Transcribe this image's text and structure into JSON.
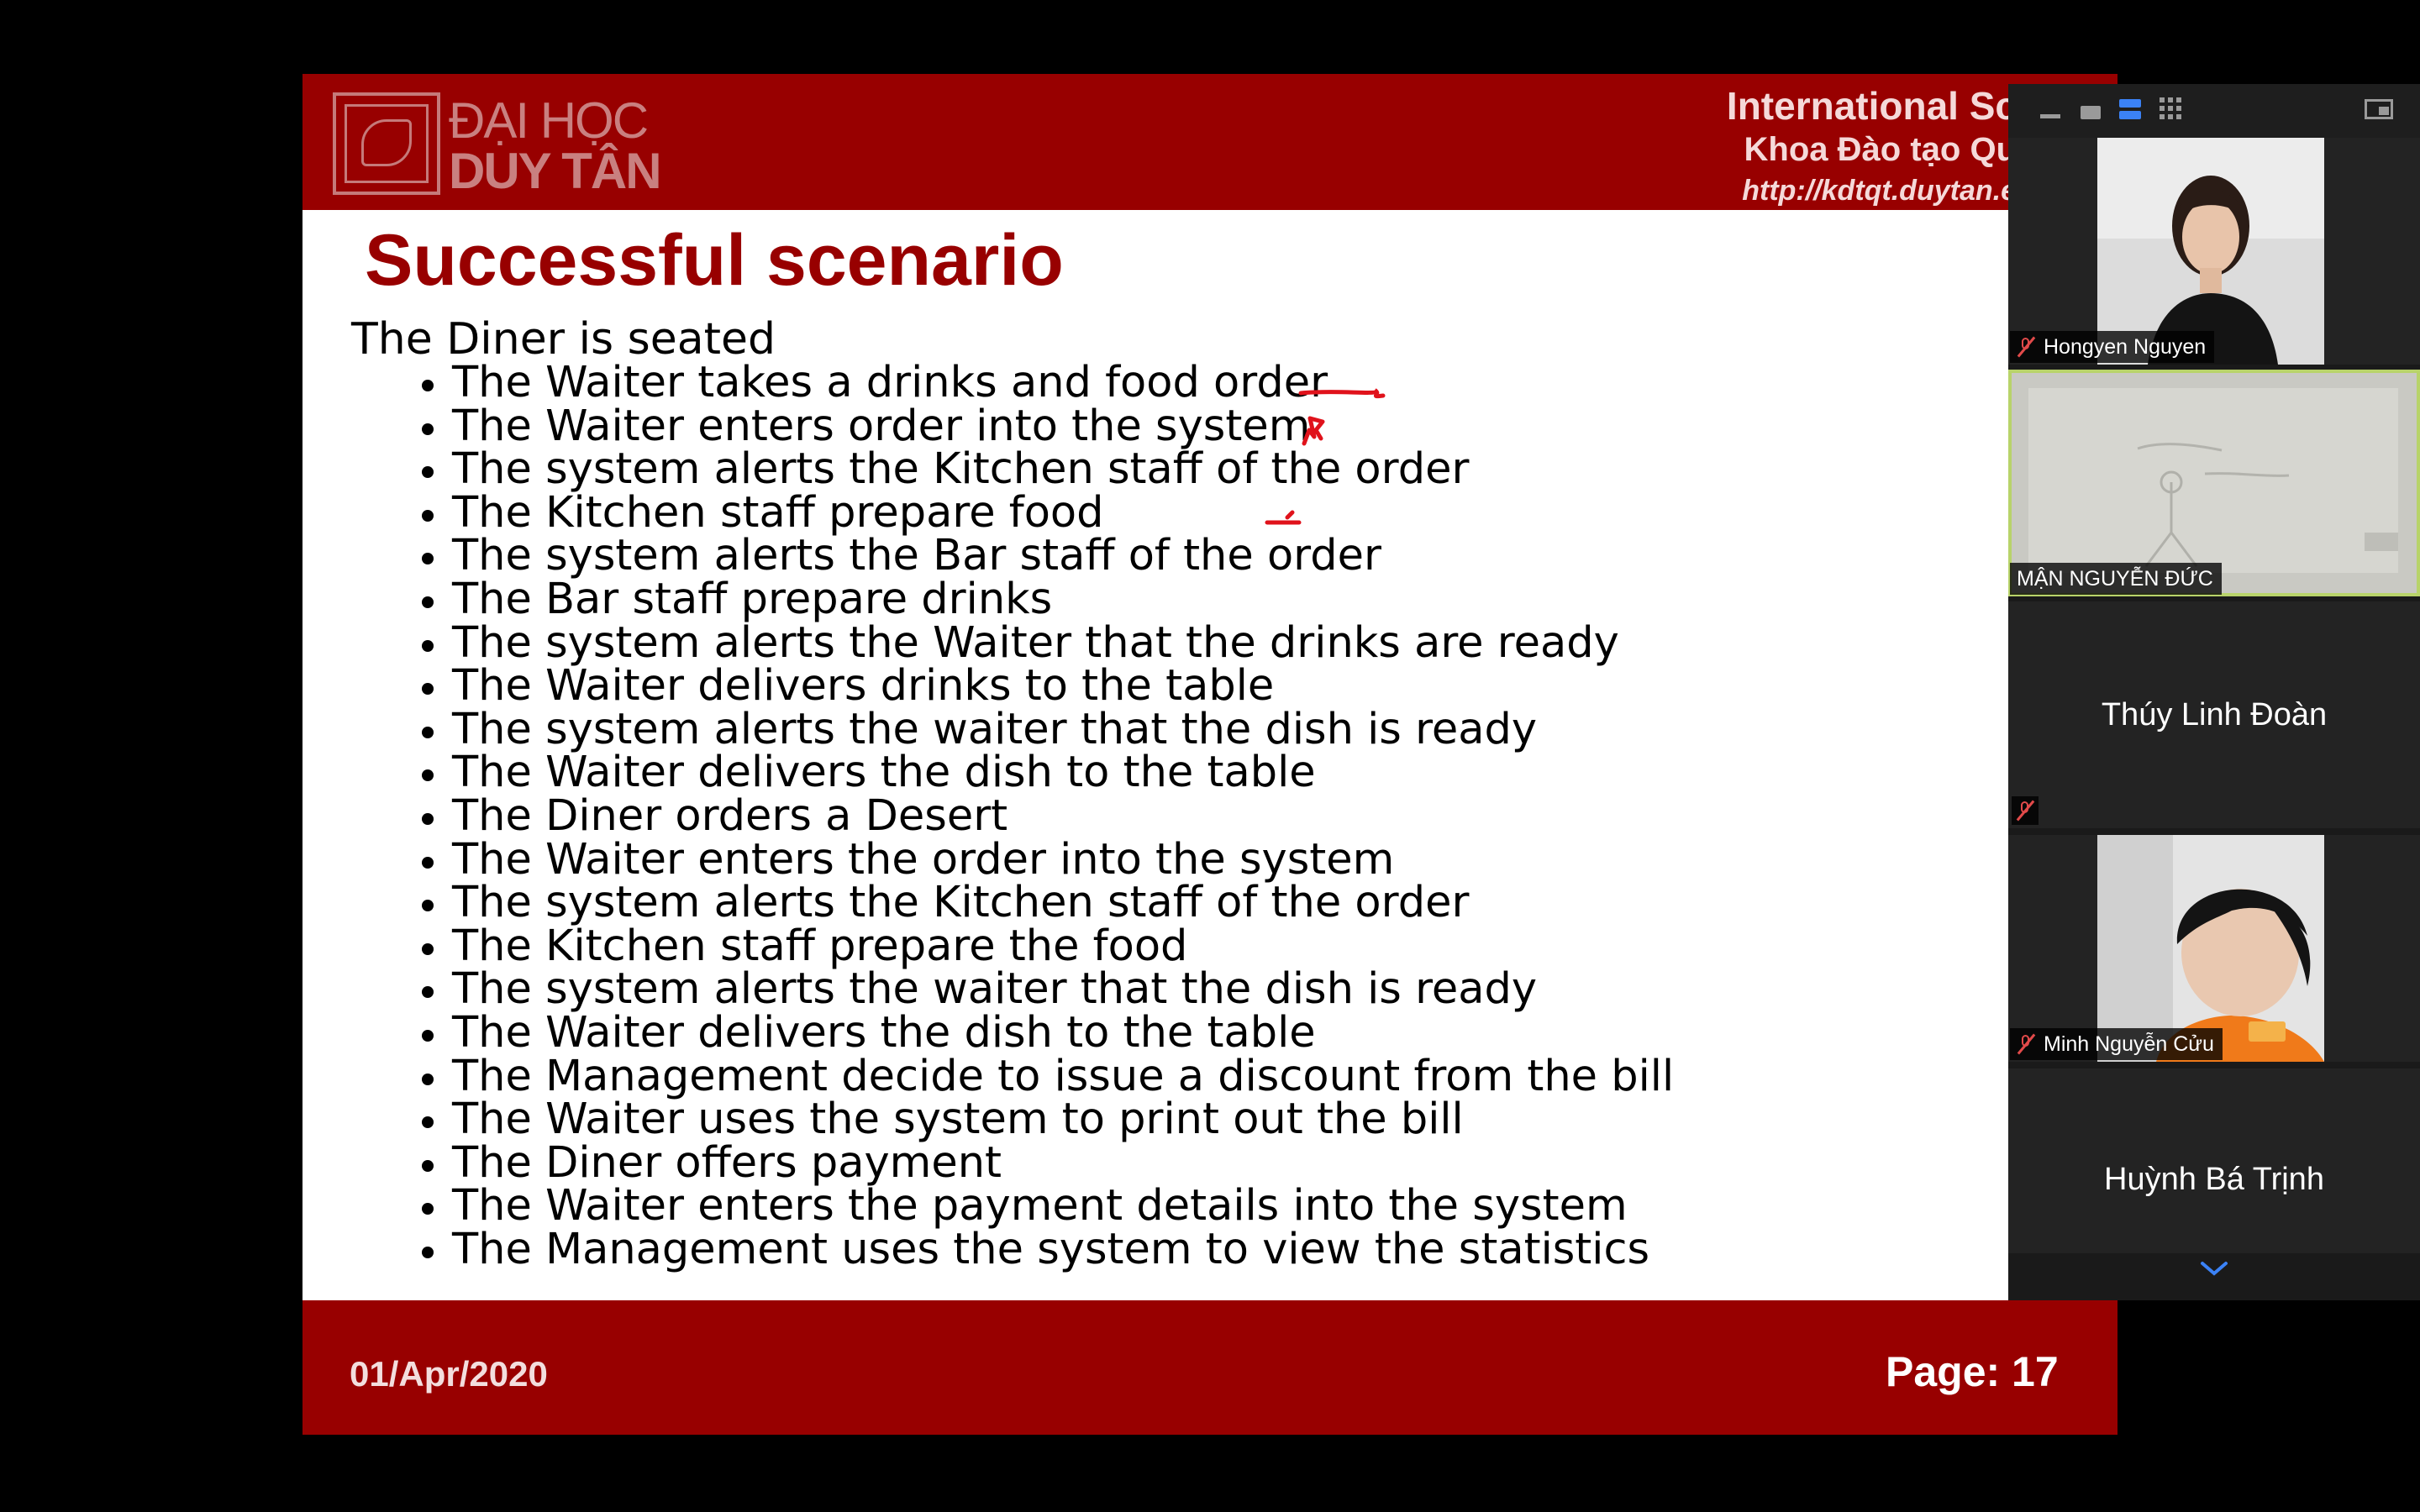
{
  "slide": {
    "logo": {
      "line1": "ĐẠI HỌC",
      "line2": "DUY TÂN"
    },
    "header": {
      "line1": "International Sc",
      "line2": "Khoa Đào tạo Qu",
      "line3": "http://kdtqt.duytan.e"
    },
    "title": "Successful scenario",
    "intro": "The Diner is seated",
    "bullets": [
      "The Waiter takes a drinks and food order",
      "The Waiter enters order into the system",
      "The system alerts the Kitchen staff of the order",
      "The Kitchen staff prepare food",
      "The system alerts the Bar staff of the order",
      "The Bar staff prepare drinks",
      "The system alerts the Waiter that the drinks are ready",
      "The Waiter delivers drinks to the table",
      "The system alerts the waiter that the dish is ready",
      "The Waiter delivers the dish to the table",
      "The Diner orders a Desert",
      "The Waiter enters the order into the system",
      "The system alerts the Kitchen staff of the order",
      "The Kitchen staff prepare the food",
      "The system alerts the waiter that the dish is ready",
      "The Waiter delivers the dish to the table",
      "The Management decide to issue a discount from the bill",
      "The Waiter uses the system to print out the bill",
      "The Diner offers payment",
      "The Waiter enters the payment details into the system",
      "The Management uses the system to view the statistics"
    ],
    "footer": {
      "date": "01/Apr/2020",
      "page": "Page: 17"
    },
    "annotation_color": "#e0121b"
  },
  "gallery": {
    "participants": [
      {
        "name": "Hongyen Nguyen",
        "muted": true,
        "video": true,
        "active": false
      },
      {
        "name": "MẬN NGUYỄN ĐỨC",
        "muted": false,
        "video": true,
        "active": true
      },
      {
        "name": "Thúy Linh Đoàn",
        "muted": true,
        "video": false,
        "active": false
      },
      {
        "name": "Minh Nguyễn Cửu",
        "muted": true,
        "video": true,
        "active": false
      },
      {
        "name": "Huỳnh Bá Trịnh",
        "muted": true,
        "video": false,
        "active": false
      }
    ],
    "active_view_color": "#3b82f6",
    "active_speaker_border": "#b8d36a"
  }
}
